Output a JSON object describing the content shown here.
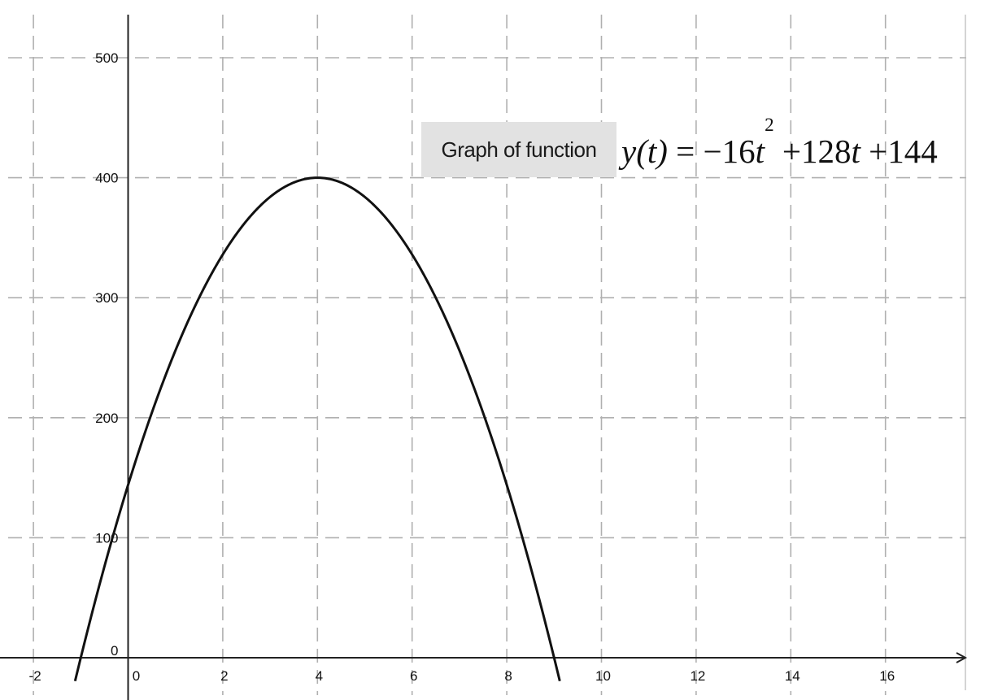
{
  "chart_data": {
    "type": "line",
    "caption": "Graph of function",
    "formula": {
      "lhs": "y(t)",
      "equals": "=",
      "neg": "−",
      "coef_a": "16",
      "var": "t",
      "exponent": "2",
      "plus1": "+",
      "coef_b": "128",
      "plus2": "+",
      "constant": "144"
    },
    "function": {
      "a": -16,
      "b": 128,
      "c": 144
    },
    "xlim": [
      -2.7,
      17.7
    ],
    "ylim": [
      -25,
      535
    ],
    "x_ticks": [
      -2,
      0,
      2,
      4,
      6,
      8,
      10,
      12,
      14,
      16
    ],
    "x_tick_labels": [
      "-2",
      "0",
      "2",
      "4",
      "6",
      "8",
      "10",
      "12",
      "14",
      "16"
    ],
    "y_ticks": [
      0,
      100,
      200,
      300,
      400,
      500
    ],
    "y_tick_labels": [
      "0",
      "100",
      "200",
      "300",
      "400",
      "500"
    ],
    "grid": true,
    "series": [
      {
        "x": [
          -1,
          -0.5,
          0,
          0.5,
          1,
          1.5,
          2,
          2.5,
          3,
          3.5,
          4,
          4.5,
          5,
          5.5,
          6,
          6.5,
          7,
          7.5,
          8,
          8.5,
          9
        ],
        "y": [
          0,
          76,
          144,
          204,
          256,
          300,
          336,
          364,
          384,
          396,
          400,
          396,
          384,
          364,
          336,
          300,
          256,
          204,
          144,
          76,
          0
        ]
      }
    ],
    "vertex": [
      4,
      400
    ],
    "roots": [
      -1,
      9
    ],
    "y_intercept": 144
  }
}
